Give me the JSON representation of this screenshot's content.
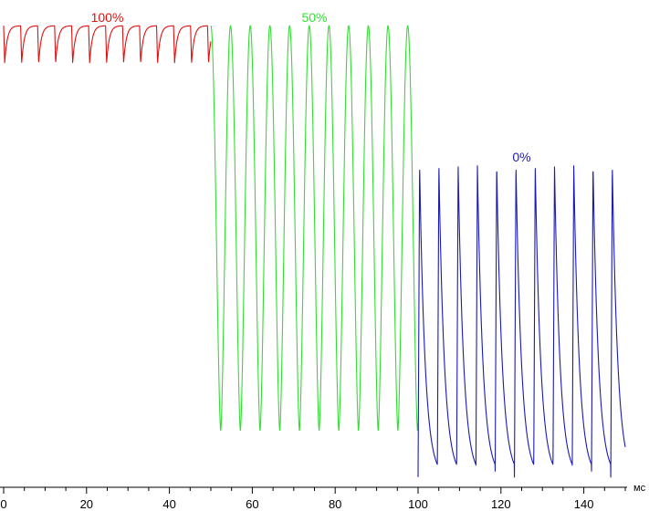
{
  "chart_data": {
    "type": "line",
    "xlabel": "мс",
    "xlim": [
      0,
      150
    ],
    "grid": false,
    "x_ticks": [
      "0",
      "20",
      "40",
      "60",
      "80",
      "100",
      "120",
      "140"
    ],
    "series": [
      {
        "name": "100%",
        "color": "#e01010",
        "x_range": [
          0,
          50
        ],
        "period_ms": 4.1,
        "y_high": 0.98,
        "y_low": 0.9,
        "shape": "dips"
      },
      {
        "name": "50%",
        "color": "#33dd33",
        "x_range": [
          50,
          100
        ],
        "period_ms": 4.75,
        "y_high": 0.98,
        "y_low": 0.11,
        "shape": "oscillation"
      },
      {
        "name": "0%",
        "color": "#1a1ab5",
        "x_range": [
          100,
          150
        ],
        "period_ms": 4.65,
        "y_high": 0.68,
        "y_low": 0.01,
        "shape": "spikes"
      }
    ]
  }
}
